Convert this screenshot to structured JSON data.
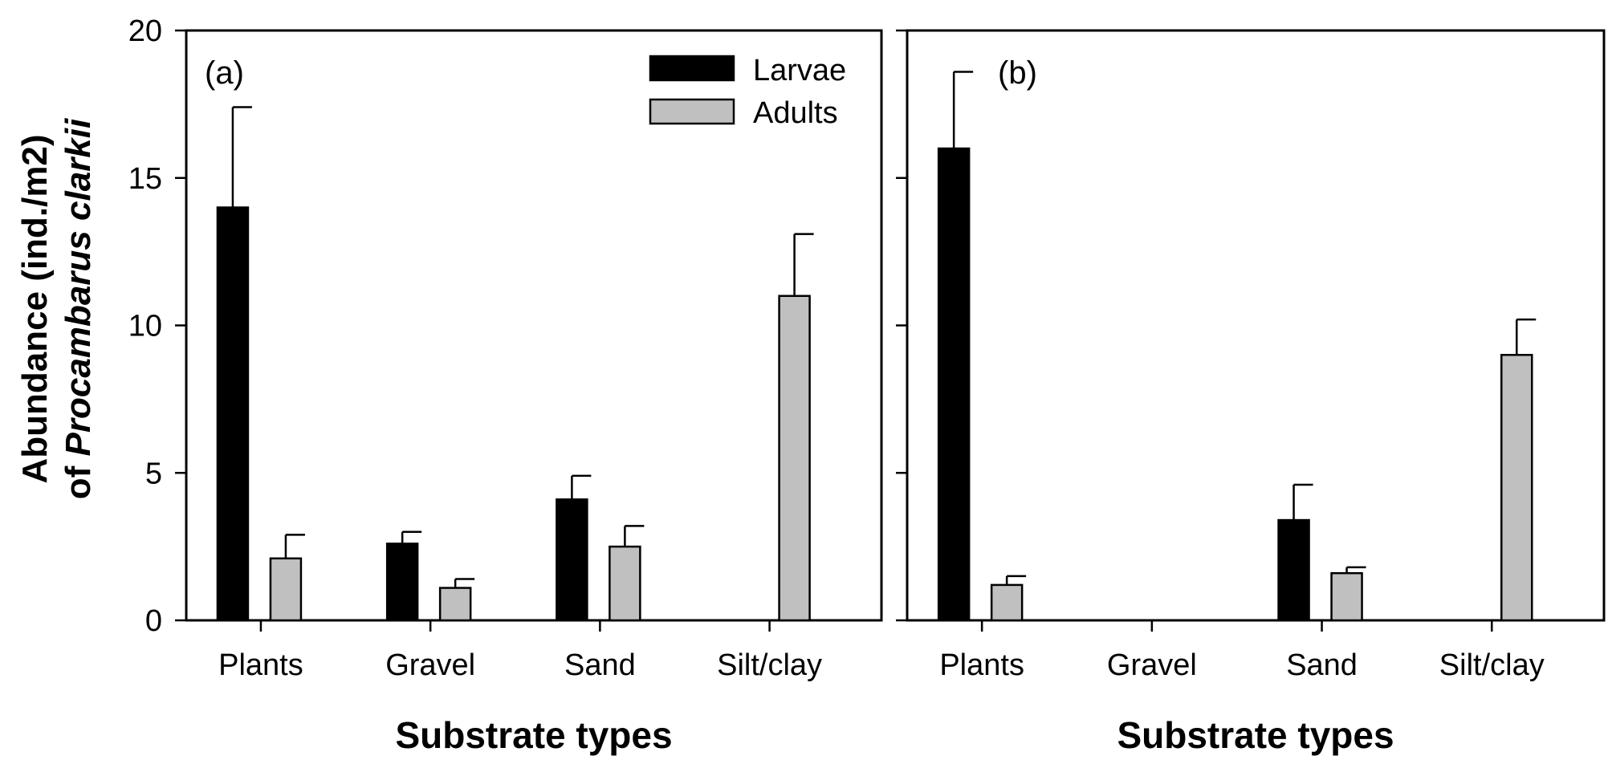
{
  "chart_data": [
    {
      "type": "bar",
      "panel_label": "(a)",
      "categories": [
        "Plants",
        "Gravel",
        "Sand",
        "Silt/clay"
      ],
      "series": [
        {
          "name": "Larvae",
          "color": "#000000",
          "values": [
            14.0,
            2.6,
            4.1,
            0
          ],
          "errors": [
            3.4,
            0.4,
            0.8,
            0
          ]
        },
        {
          "name": "Adults",
          "color": "#c0c0c0",
          "values": [
            2.1,
            1.1,
            2.5,
            11.0
          ],
          "errors": [
            0.8,
            0.3,
            0.7,
            2.1
          ]
        }
      ],
      "ylim": [
        0,
        20
      ],
      "yticks": [
        "0",
        "5",
        "10",
        "15",
        "20"
      ],
      "xlabel": "Substrate types",
      "ylabel_line1": "Abundance (ind./m2)",
      "ylabel_line2_prefix": "of ",
      "ylabel_line2_italic": "Procambarus clarkii",
      "legend": [
        "Larvae",
        "Adults"
      ]
    },
    {
      "type": "bar",
      "panel_label": "(b)",
      "categories": [
        "Plants",
        "Gravel",
        "Sand",
        "Silt/clay"
      ],
      "series": [
        {
          "name": "Larvae",
          "color": "#000000",
          "values": [
            16.0,
            0,
            3.4,
            0
          ],
          "errors": [
            2.6,
            0,
            1.2,
            0
          ]
        },
        {
          "name": "Adults",
          "color": "#c0c0c0",
          "values": [
            1.2,
            0,
            1.6,
            9.0
          ],
          "errors": [
            0.3,
            0,
            0.2,
            1.2
          ]
        }
      ],
      "ylim": [
        0,
        20
      ],
      "xlabel": "Substrate types"
    }
  ]
}
